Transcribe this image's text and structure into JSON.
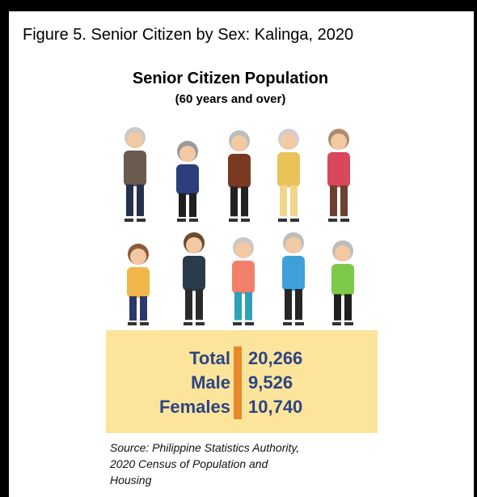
{
  "figure_title": "Figure 5. Senior Citizen by Sex: Kalinga, 2020",
  "heading": "Senior Citizen Population",
  "subheading": "(60 years and over)",
  "stats": [
    {
      "label": "Total",
      "value": "20,266"
    },
    {
      "label": "Male",
      "value": "9,526"
    },
    {
      "label": "Females",
      "value": "10,740"
    }
  ],
  "source": [
    "Source: Philippine Statistics Authority,",
    "2020 Census of Population and",
    "Housing"
  ]
}
